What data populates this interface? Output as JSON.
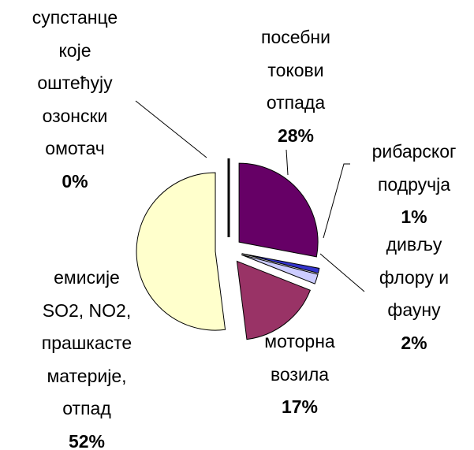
{
  "chart_data": {
    "type": "pie",
    "categories": [
      "супстанце\nкоје\nоштећују\nозонски\nомотач",
      "посебни\nтокови\nотпада",
      "рибарског\nподручја",
      "дивљу\nфлору и\nфауну",
      "моторна\nвозила",
      "емисије\nSO2, NO2,\nпрашкасте\nматерије,\nотпад"
    ],
    "values": [
      0,
      28,
      1,
      2,
      17,
      52
    ],
    "value_labels": [
      "0%",
      "28%",
      "1%",
      "2%",
      "17%",
      "52%"
    ],
    "colors": [
      "#000000",
      "#660066",
      "#3333cc",
      "#ccccff",
      "#993366",
      "#ffffcc"
    ]
  }
}
